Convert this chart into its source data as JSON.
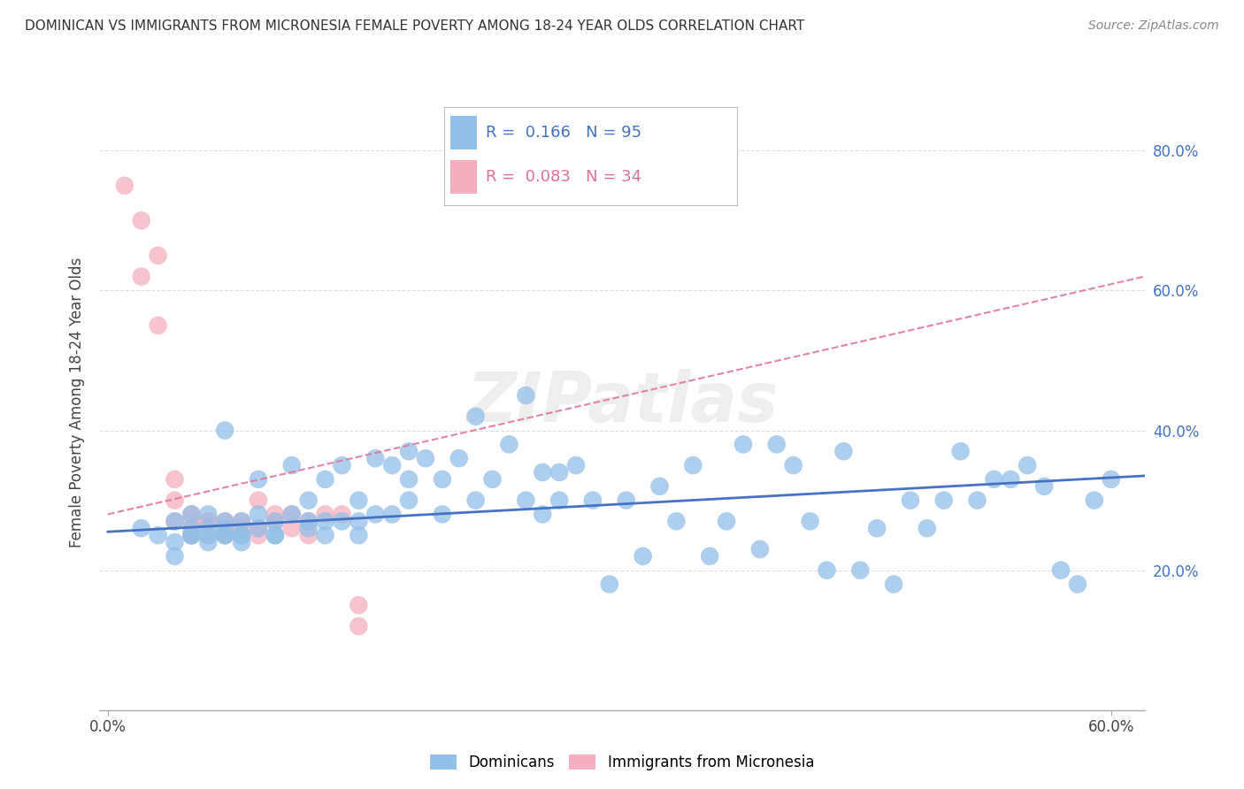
{
  "title": "DOMINICAN VS IMMIGRANTS FROM MICRONESIA FEMALE POVERTY AMONG 18-24 YEAR OLDS CORRELATION CHART",
  "source": "Source: ZipAtlas.com",
  "ylabel": "Female Poverty Among 18-24 Year Olds",
  "ytick_labels": [
    "20.0%",
    "40.0%",
    "60.0%",
    "80.0%"
  ],
  "ytick_values": [
    0.2,
    0.4,
    0.6,
    0.8
  ],
  "xtick_labels_show": [
    "0.0%",
    "60.0%"
  ],
  "xlim": [
    -0.005,
    0.62
  ],
  "ylim": [
    0.0,
    0.88
  ],
  "blue_R": 0.166,
  "blue_N": 95,
  "pink_R": 0.083,
  "pink_N": 34,
  "blue_color": "#92c0e8",
  "pink_color": "#f5afc0",
  "blue_line_color": "#4472c4",
  "pink_line_color": "#e07090",
  "legend_blue_label": "Dominicans",
  "legend_pink_label": "Immigrants from Micronesia",
  "watermark": "ZIPatlas",
  "blue_scatter_x": [
    0.02,
    0.03,
    0.04,
    0.04,
    0.04,
    0.05,
    0.05,
    0.05,
    0.05,
    0.06,
    0.06,
    0.06,
    0.06,
    0.07,
    0.07,
    0.07,
    0.07,
    0.07,
    0.08,
    0.08,
    0.08,
    0.08,
    0.09,
    0.09,
    0.09,
    0.1,
    0.1,
    0.1,
    0.11,
    0.11,
    0.12,
    0.12,
    0.12,
    0.13,
    0.13,
    0.13,
    0.14,
    0.14,
    0.15,
    0.15,
    0.15,
    0.16,
    0.16,
    0.17,
    0.17,
    0.18,
    0.18,
    0.18,
    0.19,
    0.2,
    0.2,
    0.21,
    0.22,
    0.22,
    0.23,
    0.24,
    0.25,
    0.25,
    0.26,
    0.26,
    0.27,
    0.27,
    0.28,
    0.29,
    0.3,
    0.31,
    0.32,
    0.33,
    0.34,
    0.35,
    0.36,
    0.37,
    0.38,
    0.39,
    0.4,
    0.41,
    0.42,
    0.43,
    0.44,
    0.45,
    0.46,
    0.47,
    0.48,
    0.49,
    0.5,
    0.51,
    0.52,
    0.53,
    0.54,
    0.55,
    0.56,
    0.57,
    0.58,
    0.59,
    0.6
  ],
  "blue_scatter_y": [
    0.26,
    0.25,
    0.22,
    0.27,
    0.24,
    0.25,
    0.26,
    0.28,
    0.25,
    0.24,
    0.26,
    0.25,
    0.28,
    0.25,
    0.27,
    0.26,
    0.25,
    0.4,
    0.27,
    0.24,
    0.25,
    0.25,
    0.28,
    0.26,
    0.33,
    0.27,
    0.25,
    0.25,
    0.28,
    0.35,
    0.3,
    0.26,
    0.27,
    0.33,
    0.27,
    0.25,
    0.35,
    0.27,
    0.3,
    0.27,
    0.25,
    0.36,
    0.28,
    0.35,
    0.28,
    0.33,
    0.3,
    0.37,
    0.36,
    0.33,
    0.28,
    0.36,
    0.42,
    0.3,
    0.33,
    0.38,
    0.45,
    0.3,
    0.34,
    0.28,
    0.34,
    0.3,
    0.35,
    0.3,
    0.18,
    0.3,
    0.22,
    0.32,
    0.27,
    0.35,
    0.22,
    0.27,
    0.38,
    0.23,
    0.38,
    0.35,
    0.27,
    0.2,
    0.37,
    0.2,
    0.26,
    0.18,
    0.3,
    0.26,
    0.3,
    0.37,
    0.3,
    0.33,
    0.33,
    0.35,
    0.32,
    0.2,
    0.18,
    0.3,
    0.33
  ],
  "pink_scatter_x": [
    0.01,
    0.02,
    0.02,
    0.03,
    0.03,
    0.04,
    0.04,
    0.04,
    0.05,
    0.05,
    0.05,
    0.05,
    0.06,
    0.06,
    0.06,
    0.07,
    0.07,
    0.07,
    0.08,
    0.08,
    0.08,
    0.09,
    0.09,
    0.09,
    0.1,
    0.1,
    0.11,
    0.11,
    0.12,
    0.12,
    0.13,
    0.14,
    0.15,
    0.15
  ],
  "pink_scatter_y": [
    0.75,
    0.7,
    0.62,
    0.55,
    0.65,
    0.3,
    0.33,
    0.27,
    0.25,
    0.28,
    0.27,
    0.25,
    0.27,
    0.25,
    0.27,
    0.27,
    0.25,
    0.26,
    0.25,
    0.27,
    0.26,
    0.26,
    0.3,
    0.25,
    0.27,
    0.28,
    0.28,
    0.26,
    0.27,
    0.25,
    0.28,
    0.28,
    0.15,
    0.12
  ],
  "blue_regline_x": [
    0.0,
    0.62
  ],
  "blue_regline_y": [
    0.255,
    0.335
  ],
  "pink_regline_x": [
    0.0,
    0.62
  ],
  "pink_regline_y": [
    0.28,
    0.62
  ]
}
